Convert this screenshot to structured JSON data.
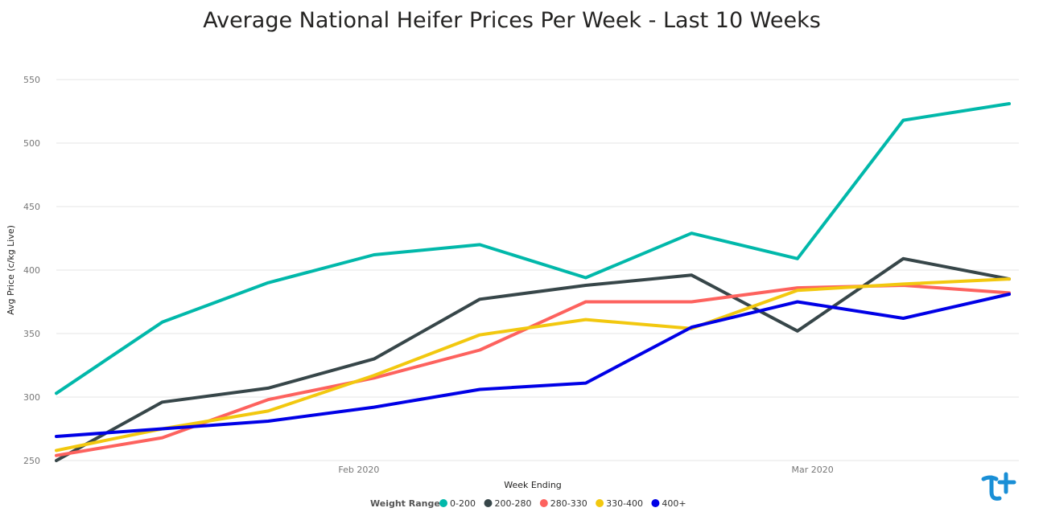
{
  "chart_data": {
    "type": "line",
    "title": "Average National Heifer Prices Per Week - Last 10 Weeks",
    "xlabel": "Week Ending",
    "ylabel": "Avg Price (c/kg Live)",
    "ylim": [
      250,
      550
    ],
    "yticks": [
      250,
      300,
      350,
      400,
      450,
      500,
      550
    ],
    "x": [
      "2020-01-11",
      "2020-01-18",
      "2020-01-25",
      "2020-02-01",
      "2020-02-08",
      "2020-02-15",
      "2020-02-22",
      "2020-02-29",
      "2020-03-07",
      "2020-03-14"
    ],
    "xticks": [
      {
        "date": "2020-01-31",
        "label": "Feb 2020"
      },
      {
        "date": "2020-03-01",
        "label": "Mar 2020"
      }
    ],
    "grid": true,
    "legend_title": "Weight Range",
    "legend_position": "bottom",
    "series": [
      {
        "name": "0-200",
        "color": "#01B8AA",
        "values": [
          303,
          359,
          390,
          412,
          420,
          394,
          429,
          409,
          518,
          531
        ]
      },
      {
        "name": "200-280",
        "color": "#374649",
        "values": [
          250,
          296,
          307,
          330,
          377,
          388,
          396,
          352,
          409,
          393
        ]
      },
      {
        "name": "280-330",
        "color": "#FD625E",
        "values": [
          254,
          268,
          298,
          315,
          337,
          375,
          375,
          386,
          388,
          382
        ]
      },
      {
        "name": "330-400",
        "color": "#F2C80F",
        "values": [
          258,
          275,
          289,
          317,
          349,
          361,
          354,
          384,
          389,
          393
        ]
      },
      {
        "name": "400+",
        "color": "#0000E6",
        "values": [
          269,
          275,
          281,
          292,
          306,
          311,
          355,
          375,
          362,
          381
        ]
      }
    ]
  }
}
